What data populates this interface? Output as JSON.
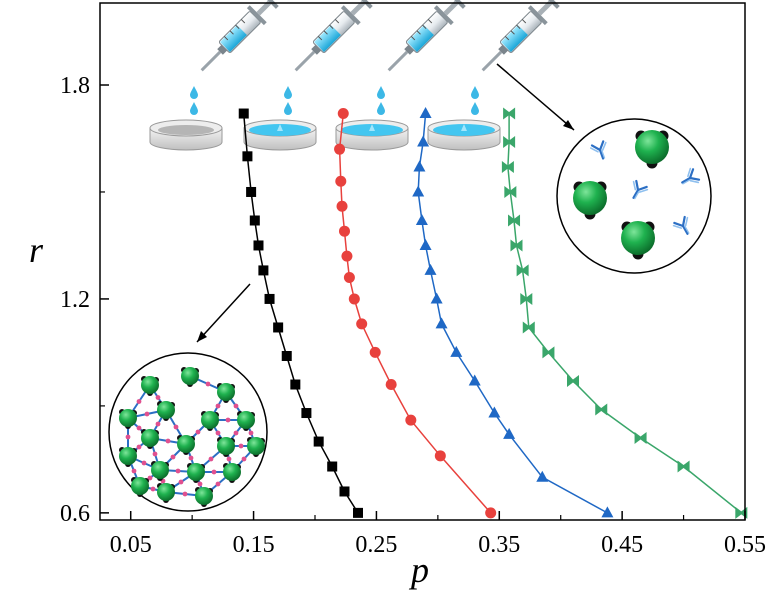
{
  "chart_data": {
    "type": "line",
    "title": "",
    "xlabel": "p",
    "ylabel": "r",
    "xlim": [
      0.025,
      0.55
    ],
    "ylim": [
      0.58,
      2.03
    ],
    "xticks": [
      0.05,
      0.15,
      0.25,
      0.35,
      0.45,
      0.55
    ],
    "xtick_labels": [
      "0.05",
      "0.15",
      "0.25",
      "0.35",
      "0.45",
      "0.55"
    ],
    "yticks": [
      0.6,
      1.2,
      1.8
    ],
    "ytick_labels": [
      "0.6",
      "1.2",
      "1.8"
    ],
    "grid": false,
    "legend": "none",
    "series": [
      {
        "color": "#000000",
        "marker": "square",
        "points": [
          [
            0.142,
            1.72
          ],
          [
            0.145,
            1.6
          ],
          [
            0.148,
            1.5
          ],
          [
            0.151,
            1.42
          ],
          [
            0.154,
            1.35
          ],
          [
            0.158,
            1.28
          ],
          [
            0.163,
            1.2
          ],
          [
            0.17,
            1.12
          ],
          [
            0.177,
            1.04
          ],
          [
            0.184,
            0.96
          ],
          [
            0.193,
            0.88
          ],
          [
            0.203,
            0.8
          ],
          [
            0.214,
            0.73
          ],
          [
            0.224,
            0.66
          ],
          [
            0.235,
            0.6
          ]
        ]
      },
      {
        "color": "#e8413d",
        "marker": "circle",
        "points": [
          [
            0.223,
            1.72
          ],
          [
            0.22,
            1.62
          ],
          [
            0.221,
            1.53
          ],
          [
            0.222,
            1.46
          ],
          [
            0.224,
            1.39
          ],
          [
            0.226,
            1.32
          ],
          [
            0.228,
            1.26
          ],
          [
            0.232,
            1.2
          ],
          [
            0.238,
            1.13
          ],
          [
            0.249,
            1.05
          ],
          [
            0.262,
            0.96
          ],
          [
            0.278,
            0.86
          ],
          [
            0.302,
            0.76
          ],
          [
            0.343,
            0.6
          ]
        ]
      },
      {
        "color": "#1f68c5",
        "marker": "triangle",
        "points": [
          [
            0.29,
            1.72
          ],
          [
            0.288,
            1.64
          ],
          [
            0.285,
            1.57
          ],
          [
            0.284,
            1.5
          ],
          [
            0.287,
            1.42
          ],
          [
            0.29,
            1.35
          ],
          [
            0.294,
            1.28
          ],
          [
            0.299,
            1.2
          ],
          [
            0.303,
            1.13
          ],
          [
            0.315,
            1.05
          ],
          [
            0.33,
            0.97
          ],
          [
            0.346,
            0.88
          ],
          [
            0.358,
            0.82
          ],
          [
            0.385,
            0.7
          ],
          [
            0.438,
            0.6
          ]
        ]
      },
      {
        "color": "#3aa66a",
        "marker": "bowtie",
        "points": [
          [
            0.358,
            1.72
          ],
          [
            0.358,
            1.64
          ],
          [
            0.357,
            1.57
          ],
          [
            0.359,
            1.5
          ],
          [
            0.362,
            1.42
          ],
          [
            0.364,
            1.35
          ],
          [
            0.369,
            1.28
          ],
          [
            0.372,
            1.2
          ],
          [
            0.374,
            1.12
          ],
          [
            0.39,
            1.05
          ],
          [
            0.41,
            0.97
          ],
          [
            0.433,
            0.89
          ],
          [
            0.465,
            0.81
          ],
          [
            0.5,
            0.73
          ],
          [
            0.547,
            0.6
          ]
        ]
      }
    ]
  },
  "illustration": {
    "syringe_count": 4,
    "dish_count": 4,
    "insets": [
      "dispersed-particles-antibodies-inset",
      "aggregated-network-inset"
    ]
  }
}
